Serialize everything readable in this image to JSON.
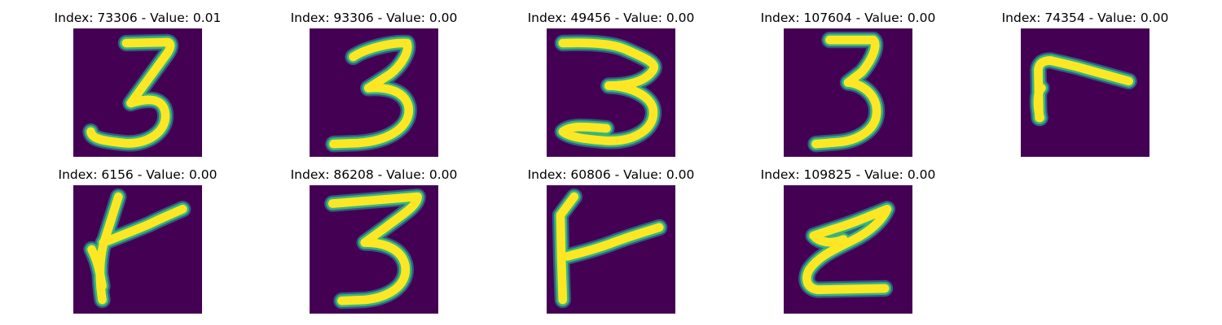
{
  "colors": {
    "background": "#440154",
    "stroke_core": "#fde725",
    "stroke_mid": "#35b779",
    "stroke_edge": "#31688e"
  },
  "panels": [
    {
      "title": "Index: 73306 - Value: 0.01",
      "glyph": "digit-3-thin"
    },
    {
      "title": "Index: 93306 - Value: 0.00",
      "glyph": "digit-3-bold"
    },
    {
      "title": "Index: 49456 - Value: 0.00",
      "glyph": "digit-3-wide"
    },
    {
      "title": "Index: 107604 - Value: 0.00",
      "glyph": "digit-3-narrow"
    },
    {
      "title": "Index: 74354 - Value: 0.00",
      "glyph": "hook-stroke"
    },
    {
      "title": "Index: 6156 - Value: 0.00",
      "glyph": "rotated-h-stroke"
    },
    {
      "title": "Index: 86208 - Value: 0.00",
      "glyph": "digit-3-flat-top"
    },
    {
      "title": "Index: 60806 - Value: 0.00",
      "glyph": "t-stroke"
    },
    {
      "title": "Index: 109825 - Value: 0.00",
      "glyph": "z-stroke"
    }
  ]
}
